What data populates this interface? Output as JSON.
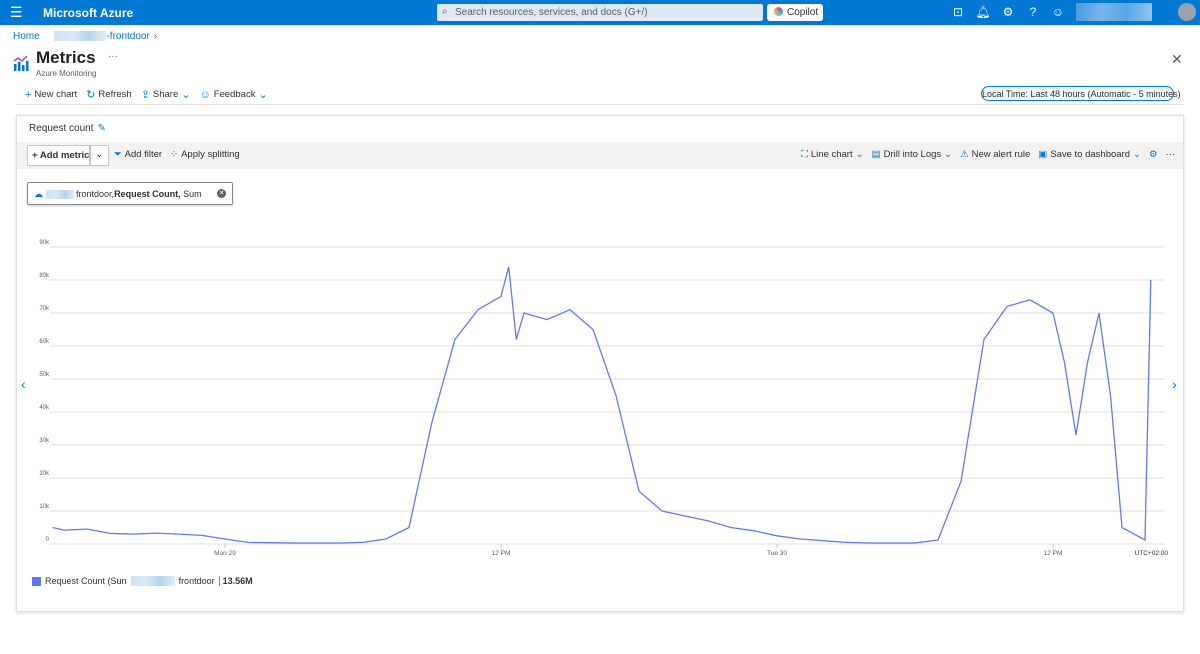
{
  "topbar": {
    "brand": "Microsoft Azure",
    "search_placeholder": "Search resources, services, and docs (G+/)",
    "copilot": "Copilot",
    "icons": [
      "menu-icon",
      "cloud-shell-icon",
      "bell-icon",
      "gear-icon",
      "help-icon",
      "feedback-icon"
    ]
  },
  "breadcrumb": {
    "home": "Home",
    "resource": "-frontdoor"
  },
  "page": {
    "title": "Metrics",
    "subtitle": "Azure Monitoring",
    "more": "···"
  },
  "commands": {
    "new_chart": "New chart",
    "refresh": "Refresh",
    "share": "Share",
    "feedback": "Feedback",
    "time_range": "Local Time: Last 48 hours (Automatic - 5 minutes)"
  },
  "card": {
    "title": "Request count",
    "add_metric": "Add metric",
    "add_filter": "Add filter",
    "apply_splitting": "Apply splitting",
    "line_chart": "Line chart",
    "drill_logs": "Drill into Logs",
    "new_alert": "New alert rule",
    "save_dashboard": "Save to dashboard",
    "more": "···",
    "pill": {
      "resource": "frontdoor,",
      "metric": "Request Count,",
      "agg": "Sum"
    },
    "legend": {
      "label_prefix": "Request Count (Sun",
      "resource": "frontdoor",
      "total": "13.56M"
    }
  },
  "chart_data": {
    "type": "line",
    "y_ticks": [
      "0",
      "10k",
      "20k",
      "30k",
      "40k",
      "50k",
      "60k",
      "70k",
      "80k",
      "90k"
    ],
    "ylim": [
      0,
      90000
    ],
    "x_ticks": [
      {
        "label": "Mon 29",
        "hour": 0
      },
      {
        "label": "12 PM",
        "hour": 12
      },
      {
        "label": "Tue 30",
        "hour": 24
      },
      {
        "label": "12 PM",
        "hour": 36
      }
    ],
    "timezone": "UTC+02:00",
    "grid": true,
    "color": "#6179ee",
    "series": [
      {
        "name": "Request Count (Sum)",
        "points": [
          [
            "Sun 28 16:30",
            5000
          ],
          [
            "Sun 28 17:00",
            4200
          ],
          [
            "Sun 28 18:00",
            4500
          ],
          [
            "Sun 28 19:00",
            3200
          ],
          [
            "Sun 28 20:00",
            3000
          ],
          [
            "Sun 28 21:00",
            3300
          ],
          [
            "Sun 28 22:00",
            3000
          ],
          [
            "Sun 28 23:00",
            2600
          ],
          [
            "Mon 29 00:00",
            1500
          ],
          [
            "Mon 29 01:00",
            500
          ],
          [
            "Mon 29 02:00",
            400
          ],
          [
            "Mon 29 03:00",
            300
          ],
          [
            "Mon 29 04:00",
            300
          ],
          [
            "Mon 29 05:00",
            300
          ],
          [
            "Mon 29 06:00",
            500
          ],
          [
            "Mon 29 07:00",
            1500
          ],
          [
            "Mon 29 08:00",
            5000
          ],
          [
            "Mon 29 09:00",
            37000
          ],
          [
            "Mon 29 10:00",
            62000
          ],
          [
            "Mon 29 11:00",
            71000
          ],
          [
            "Mon 29 12:00",
            75000
          ],
          [
            "Mon 29 12:20",
            84000
          ],
          [
            "Mon 29 12:40",
            62000
          ],
          [
            "Mon 29 13:00",
            70000
          ],
          [
            "Mon 29 14:00",
            68000
          ],
          [
            "Mon 29 15:00",
            71000
          ],
          [
            "Mon 29 16:00",
            65000
          ],
          [
            "Mon 29 17:00",
            45000
          ],
          [
            "Mon 29 18:00",
            16000
          ],
          [
            "Mon 29 19:00",
            10000
          ],
          [
            "Mon 29 20:00",
            8500
          ],
          [
            "Mon 29 21:00",
            7000
          ],
          [
            "Mon 29 22:00",
            5000
          ],
          [
            "Mon 29 23:00",
            4000
          ],
          [
            "Tue 30 00:00",
            2500
          ],
          [
            "Tue 30 01:00",
            1500
          ],
          [
            "Tue 30 02:00",
            1000
          ],
          [
            "Tue 30 03:00",
            500
          ],
          [
            "Tue 30 04:00",
            300
          ],
          [
            "Tue 30 05:00",
            300
          ],
          [
            "Tue 30 06:00",
            300
          ],
          [
            "Tue 30 07:00",
            1200
          ],
          [
            "Tue 30 08:00",
            19000
          ],
          [
            "Tue 30 09:00",
            62000
          ],
          [
            "Tue 30 10:00",
            72000
          ],
          [
            "Tue 30 11:00",
            74000
          ],
          [
            "Tue 30 12:00",
            70000
          ],
          [
            "Tue 30 12:30",
            55000
          ],
          [
            "Tue 30 13:00",
            33000
          ],
          [
            "Tue 30 13:30",
            55000
          ],
          [
            "Tue 30 14:00",
            70000
          ],
          [
            "Tue 30 14:30",
            45000
          ],
          [
            "Tue 30 15:00",
            5000
          ],
          [
            "Tue 30 16:00",
            1200
          ],
          [
            "Tue 30 16:15",
            80000
          ]
        ]
      }
    ]
  }
}
